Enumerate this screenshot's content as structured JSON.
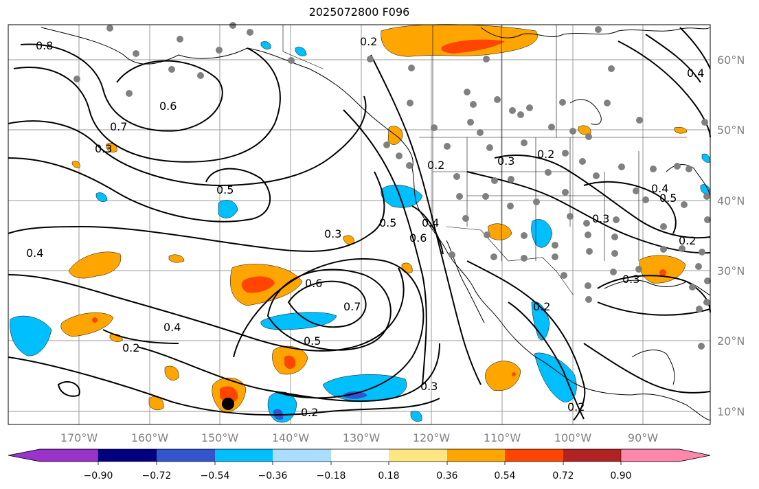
{
  "title": "2025072800 F096",
  "map": {
    "lon_ticks": [
      "170°W",
      "160°W",
      "150°W",
      "140°W",
      "130°W",
      "120°W",
      "110°W",
      "100°W",
      "90°W"
    ],
    "lat_ticks": [
      "60°N",
      "50°N",
      "40°N",
      "30°N",
      "20°N",
      "10°N"
    ],
    "contour_labels": [
      "0.8",
      "0.6",
      "0.7",
      "0.3",
      "0.5",
      "0.3",
      "0.4",
      "0.6",
      "0.7",
      "0.5",
      "0.4",
      "0.2",
      "0.2",
      "0.5",
      "0.6",
      "0.4",
      "0.3",
      "0.2",
      "0.2",
      "0.3",
      "0.2",
      "0.4",
      "0.5",
      "0.3",
      "0.2",
      "0.3",
      "0.2",
      "0.2",
      "0.4"
    ],
    "colors": {
      "land": "#ffffff",
      "ocean": "#ffffff",
      "grid": "#9a9a9a",
      "contour": "#000000",
      "station_dot": "#808080",
      "storm_dot": "#000000"
    }
  },
  "colorbar": {
    "tick_labels": [
      "−0.90",
      "−0.72",
      "−0.54",
      "−0.36",
      "−0.18",
      "0.18",
      "0.36",
      "0.54",
      "0.72",
      "0.90"
    ],
    "colors": [
      "#9933cc",
      "#000080",
      "#3355cc",
      "#00bfff",
      "#aaddff",
      "#ffffff",
      "#ffe680",
      "#ffa500",
      "#ff4500",
      "#b22222",
      "#ff88aa"
    ]
  }
}
